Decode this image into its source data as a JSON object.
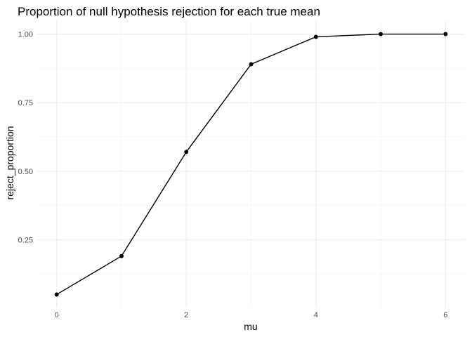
{
  "chart_data": {
    "type": "line",
    "title": "Proportion of null hypothesis rejection for each true mean",
    "xlabel": "mu",
    "ylabel": "reject_proportion",
    "x": [
      0,
      1,
      2,
      3,
      4,
      5,
      6
    ],
    "series": [
      {
        "values": [
          0.05,
          0.19,
          0.57,
          0.89,
          0.99,
          1.0,
          1.0
        ]
      }
    ],
    "xlim": [
      0,
      6
    ],
    "ylim": [
      0.05,
      1.0
    ],
    "x_major_ticks": [
      0,
      2,
      4,
      6
    ],
    "x_tick_labels": [
      "0",
      "2",
      "4",
      "6"
    ],
    "x_minor_ticks": [
      1,
      3,
      5
    ],
    "y_major_ticks": [
      0.25,
      0.5,
      0.75,
      1.0
    ],
    "y_tick_labels": [
      "0.25",
      "0.50",
      "0.75",
      "1.00"
    ],
    "y_minor_ticks": [
      0.125,
      0.375,
      0.625,
      0.875
    ],
    "grid": true,
    "markers": true,
    "line_color": "#000000",
    "grid_color": "#ebebeb"
  }
}
